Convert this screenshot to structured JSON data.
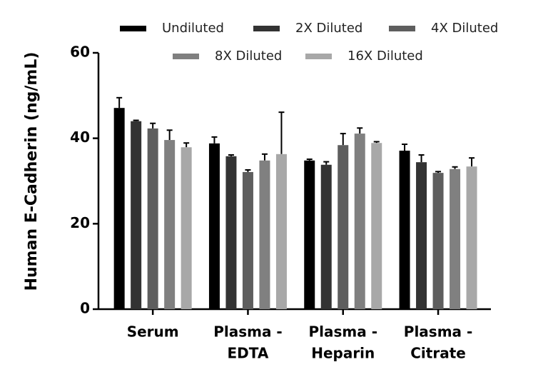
{
  "chart_data": {
    "type": "bar",
    "y_label": "Human E-Cadherin (ng/mL)",
    "categories": [
      [
        "Serum"
      ],
      [
        "Plasma -",
        "EDTA"
      ],
      [
        "Plasma -",
        "Heparin"
      ],
      [
        "Plasma -",
        "Citrate"
      ]
    ],
    "series": [
      {
        "name": "Undiluted",
        "color": "#000000",
        "values": [
          47.1,
          38.8,
          34.8,
          37.1
        ],
        "errors": [
          2.4,
          1.5,
          0.3,
          1.5
        ]
      },
      {
        "name": "2X Diluted",
        "color": "#333333",
        "values": [
          44.0,
          35.8,
          33.8,
          34.4
        ],
        "errors": [
          0.2,
          0.3,
          0.7,
          1.7
        ]
      },
      {
        "name": "4X Diluted",
        "color": "#5e5e5e",
        "values": [
          42.3,
          32.1,
          38.4,
          31.9
        ],
        "errors": [
          1.2,
          0.5,
          2.7,
          0.3
        ]
      },
      {
        "name": "8X Diluted",
        "color": "#808080",
        "values": [
          39.6,
          34.8,
          41.1,
          32.8
        ],
        "errors": [
          2.3,
          1.5,
          1.3,
          0.5
        ]
      },
      {
        "name": "16X Diluted",
        "color": "#a8a8a8",
        "values": [
          37.9,
          36.3,
          38.9,
          33.4
        ],
        "errors": [
          1.0,
          9.8,
          0.3,
          2.0
        ]
      }
    ],
    "ylim": [
      0,
      60
    ],
    "yticks": [
      0,
      20,
      40,
      60
    ],
    "legend": "top"
  }
}
